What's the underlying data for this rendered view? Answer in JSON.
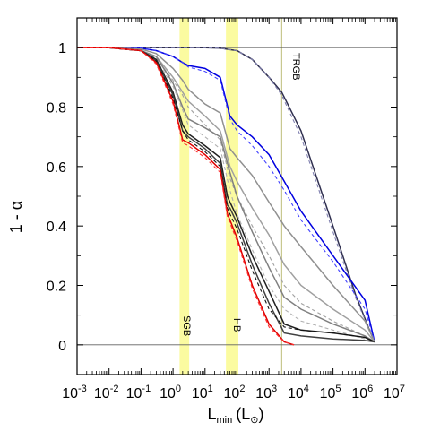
{
  "chart_data": {
    "type": "line",
    "xlabel": "L",
    "xlabel_sub": "min",
    "xlabel_unit": "(L",
    "xlabel_unit_symbol": "⊙",
    "xlabel_unit_close": ")",
    "ylabel": "1 - α",
    "xscale": "log",
    "xlim": [
      0.001,
      10000000
    ],
    "ylim": [
      -0.1,
      1.1
    ],
    "x_tick_exponents": [
      "-3",
      "-2",
      "-1",
      "0",
      "1",
      "2",
      "3",
      "4",
      "5",
      "6",
      "7"
    ],
    "x_tick_base": "10",
    "y_ticks": [
      "0",
      "0.2",
      "0.4",
      "0.6",
      "0.8",
      "1"
    ],
    "y_tick_values": [
      0,
      0.2,
      0.4,
      0.6,
      0.8,
      1
    ],
    "reference_lines_y": [
      0,
      1
    ],
    "bands": [
      {
        "label": "SGB",
        "x_from": 1.6,
        "x_to": 3.2,
        "color": "#fbfba0"
      },
      {
        "label": "HB",
        "x_from": 45,
        "x_to": 110,
        "color": "#fbfba0"
      }
    ],
    "vertical_lines": [
      {
        "label": "TRGB",
        "x": 2500,
        "color": "#c8c890"
      }
    ],
    "series": [
      {
        "color": "#303050",
        "style": "solid",
        "x": [
          0.001,
          1,
          10,
          30,
          100,
          300,
          1000,
          2500,
          10000,
          100000,
          500000,
          1500000,
          2000000
        ],
        "y": [
          1,
          1,
          1,
          0.998,
          0.99,
          0.96,
          0.9,
          0.85,
          0.72,
          0.4,
          0.17,
          0.04,
          0.01
        ]
      },
      {
        "color": "#8080b0",
        "style": "dashed",
        "x": [
          0.001,
          1,
          10,
          30,
          100,
          300,
          1000,
          2500,
          10000,
          100000,
          500000,
          1500000,
          2000000
        ],
        "y": [
          1,
          1,
          1,
          0.998,
          0.99,
          0.96,
          0.9,
          0.84,
          0.7,
          0.38,
          0.16,
          0.04,
          0.01
        ]
      },
      {
        "color": "#0000e0",
        "style": "solid",
        "x": [
          0.001,
          0.01,
          0.1,
          0.3,
          1,
          2,
          3,
          10,
          30,
          60,
          100,
          300,
          1000,
          3000,
          10000,
          100000,
          1000000,
          2000000
        ],
        "y": [
          1,
          1,
          0.998,
          0.99,
          0.97,
          0.95,
          0.94,
          0.93,
          0.9,
          0.77,
          0.74,
          0.7,
          0.64,
          0.55,
          0.45,
          0.3,
          0.15,
          0.01
        ]
      },
      {
        "color": "#4040ff",
        "style": "dashed",
        "x": [
          0.001,
          0.01,
          0.1,
          0.3,
          1,
          2,
          3,
          10,
          30,
          60,
          100,
          300,
          1000,
          3000,
          10000,
          100000,
          1000000,
          2000000
        ],
        "y": [
          1,
          1,
          0.998,
          0.99,
          0.97,
          0.95,
          0.935,
          0.92,
          0.89,
          0.76,
          0.72,
          0.67,
          0.6,
          0.52,
          0.42,
          0.28,
          0.12,
          0.01
        ]
      },
      {
        "color": "#909090",
        "style": "solid",
        "x": [
          0.001,
          0.01,
          0.1,
          0.3,
          1,
          2,
          3,
          10,
          30,
          60,
          100,
          300,
          1000,
          3000,
          10000,
          100000,
          1000000,
          2000000
        ],
        "y": [
          1,
          1,
          0.995,
          0.98,
          0.93,
          0.89,
          0.86,
          0.81,
          0.78,
          0.66,
          0.63,
          0.57,
          0.48,
          0.4,
          0.33,
          0.2,
          0.08,
          0.01
        ]
      },
      {
        "color": "#a0a0a0",
        "style": "solid",
        "x": [
          0.001,
          0.01,
          0.1,
          0.3,
          1,
          2,
          3,
          10,
          30,
          60,
          100,
          300,
          1000,
          3000,
          10000,
          100000,
          1000000,
          2000000
        ],
        "y": [
          1,
          1,
          0.99,
          0.97,
          0.9,
          0.85,
          0.82,
          0.77,
          0.72,
          0.6,
          0.55,
          0.46,
          0.37,
          0.27,
          0.2,
          0.12,
          0.05,
          0.01
        ]
      },
      {
        "color": "#a0a0a0",
        "style": "dashed",
        "x": [
          0.001,
          0.01,
          0.1,
          0.3,
          1,
          2,
          3,
          10,
          30,
          60,
          100,
          300,
          1000,
          3000,
          10000,
          100000,
          1000000,
          2000000
        ],
        "y": [
          1,
          1,
          0.99,
          0.965,
          0.89,
          0.84,
          0.8,
          0.74,
          0.69,
          0.56,
          0.5,
          0.4,
          0.3,
          0.2,
          0.14,
          0.08,
          0.03,
          0.01
        ]
      },
      {
        "color": "#808080",
        "style": "solid",
        "x": [
          0.001,
          0.01,
          0.1,
          0.3,
          1,
          2,
          3,
          10,
          30,
          60,
          100,
          300,
          1000,
          3000,
          10000,
          100000,
          1000000,
          2000000
        ],
        "y": [
          1,
          1,
          0.99,
          0.97,
          0.88,
          0.8,
          0.76,
          0.73,
          0.7,
          0.58,
          0.5,
          0.38,
          0.26,
          0.16,
          0.12,
          0.07,
          0.03,
          0.01
        ]
      },
      {
        "color": "#b0b0b0",
        "style": "dashed",
        "x": [
          0.001,
          0.01,
          0.1,
          0.3,
          1,
          2,
          3,
          10,
          30,
          60,
          100,
          300,
          1000,
          3000,
          10000,
          100000,
          1000000,
          2000000
        ],
        "y": [
          1,
          1,
          0.99,
          0.96,
          0.87,
          0.79,
          0.74,
          0.7,
          0.66,
          0.52,
          0.44,
          0.32,
          0.2,
          0.12,
          0.08,
          0.05,
          0.02,
          0.01
        ]
      },
      {
        "color": "#202020",
        "style": "solid",
        "x": [
          0.001,
          0.01,
          0.1,
          0.3,
          1,
          2,
          3,
          10,
          30,
          50,
          60,
          100,
          300,
          1000,
          3000,
          10000,
          100000,
          1000000,
          2000000
        ],
        "y": [
          1,
          1,
          0.99,
          0.96,
          0.85,
          0.74,
          0.71,
          0.67,
          0.63,
          0.5,
          0.48,
          0.43,
          0.3,
          0.18,
          0.07,
          0.05,
          0.04,
          0.025,
          0.01
        ]
      },
      {
        "color": "#404040",
        "style": "solid",
        "x": [
          0.001,
          0.01,
          0.1,
          0.3,
          1,
          2,
          3,
          10,
          30,
          50,
          60,
          100,
          300,
          1000,
          3000,
          10000,
          100000,
          1000000,
          2000000
        ],
        "y": [
          1,
          1,
          0.99,
          0.955,
          0.84,
          0.72,
          0.7,
          0.66,
          0.61,
          0.47,
          0.46,
          0.41,
          0.27,
          0.14,
          0.04,
          0.03,
          0.02,
          0.015,
          0.01
        ]
      },
      {
        "color": "#101010",
        "style": "dashed",
        "x": [
          0.001,
          0.01,
          0.1,
          0.3,
          1,
          2,
          3,
          10,
          30,
          50,
          60,
          100,
          300,
          1000,
          3000,
          10000,
          100000,
          1000000,
          2000000
        ],
        "y": [
          1,
          1,
          0.99,
          0.955,
          0.83,
          0.72,
          0.69,
          0.65,
          0.6,
          0.46,
          0.44,
          0.39,
          0.25,
          0.12,
          0.06,
          0.05,
          0.04,
          0.025,
          0.01
        ]
      },
      {
        "color": "#e00000",
        "style": "solid",
        "x": [
          0.001,
          0.01,
          0.1,
          0.3,
          1,
          2,
          3,
          10,
          30,
          50,
          60,
          100,
          300,
          1000,
          3000,
          6000
        ],
        "y": [
          1,
          1,
          0.99,
          0.95,
          0.82,
          0.69,
          0.68,
          0.64,
          0.59,
          0.44,
          0.42,
          0.36,
          0.2,
          0.07,
          0.01,
          0
        ]
      },
      {
        "color": "#ff3030",
        "style": "dashed",
        "x": [
          0.001,
          0.01,
          0.1,
          0.3,
          1,
          2,
          3,
          10,
          30,
          50,
          60,
          100,
          300,
          1000,
          3000,
          6000
        ],
        "y": [
          1,
          1,
          0.99,
          0.945,
          0.81,
          0.68,
          0.67,
          0.63,
          0.58,
          0.43,
          0.41,
          0.35,
          0.19,
          0.06,
          0.01,
          0
        ]
      }
    ]
  },
  "annotations": {
    "sgb": "SGB",
    "hb": "HB",
    "trgb": "TRGB"
  }
}
